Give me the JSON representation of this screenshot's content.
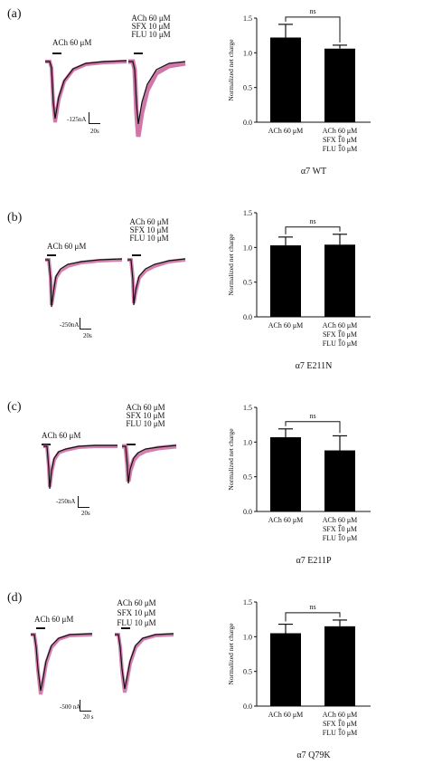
{
  "panels": [
    {
      "label": "(a)",
      "ach_label": "ACh 60 μM",
      "combo_lines": [
        "ACh 60 μM",
        "+",
        "SFX 10 μM",
        "+",
        "FLU 10 μM"
      ],
      "scale_current": "-125nA",
      "scale_time": "20s"
    },
    {
      "label": "(b)",
      "ach_label": "ACh 60 μM",
      "combo_lines": [
        "ACh 60 μM",
        "+",
        "SFX 10 μM",
        "+",
        "FLU 10 μM"
      ],
      "scale_current": "-250nA",
      "scale_time": "20s"
    },
    {
      "label": "(c)",
      "ach_label": "ACh 60 μM",
      "combo_lines": [
        "ACh 60 μM",
        "+",
        "SFX 10 μM",
        "+",
        "FLU 10 μM"
      ],
      "scale_current": "-250nA",
      "scale_time": "20s"
    },
    {
      "label": "(d)",
      "ach_label": "ACh 60 μM",
      "combo_lines": [
        "ACh 60 μM",
        "+",
        "SFX 10 μM",
        "+",
        "FLU 10 μM"
      ],
      "scale_current": "-500 nA",
      "scale_time": "20 s"
    }
  ],
  "chart_data": [
    {
      "type": "bar",
      "title": "α7 WT",
      "ylabel": "Normalized net charge",
      "ylim": [
        0.0,
        1.5
      ],
      "yticks": [
        "0.0",
        "0.5",
        "1.0",
        "1.5"
      ],
      "categories": [
        "ACh 60 μM",
        "ACh 60 μM + SFX 10 μM + FLU 10 μM"
      ],
      "category_lines": [
        [
          "ACh 60 μM"
        ],
        [
          "ACh 60 μM",
          "+",
          "SFX 10 μM",
          "+",
          "FLU 10 μM"
        ]
      ],
      "values": [
        1.22,
        1.06
      ],
      "errors": [
        0.19,
        0.05
      ],
      "significance": "ns"
    },
    {
      "type": "bar",
      "title": "α7 E211N",
      "ylabel": "Normalized net charge",
      "ylim": [
        0.0,
        1.5
      ],
      "yticks": [
        "0.0",
        "0.5",
        "1.0",
        "1.5"
      ],
      "categories": [
        "ACh 60 μM",
        "ACh 60 μM + SFX 10 μM + FLU 10 μM"
      ],
      "category_lines": [
        [
          "ACh 60 μM"
        ],
        [
          "ACh 60 μM",
          "+",
          "SFX 10 μM",
          "+",
          "FLU 10 μM"
        ]
      ],
      "values": [
        1.03,
        1.04
      ],
      "errors": [
        0.12,
        0.15
      ],
      "significance": "ns"
    },
    {
      "type": "bar",
      "title": "α7 E211P",
      "ylabel": "Normalized net charge",
      "ylim": [
        0.0,
        1.5
      ],
      "yticks": [
        "0.0",
        "0.5",
        "1.0",
        "1.5"
      ],
      "categories": [
        "ACh 60 μM",
        "ACh 60 μM + SFX 10 μM + FLU 10 μM"
      ],
      "category_lines": [
        [
          "ACh 60 μM"
        ],
        [
          "ACh 60 μM",
          "+",
          "SFX 10 μM",
          "+",
          "FLU 10 μM"
        ]
      ],
      "values": [
        1.07,
        0.88
      ],
      "errors": [
        0.12,
        0.21
      ],
      "significance": "ns"
    },
    {
      "type": "bar",
      "title": "α7 Q79K",
      "ylabel": "Normalized net charge",
      "ylim": [
        0.0,
        1.5
      ],
      "yticks": [
        "0.0",
        "0.5",
        "1.0",
        "1.5"
      ],
      "categories": [
        "ACh 60 μM",
        "ACh 60 μM + SFX 10 μM + FLU 10 μM"
      ],
      "category_lines": [
        [
          "ACh 60 μM"
        ],
        [
          "ACh 60 μM",
          "+",
          "SFX 10 μM",
          "+",
          "FLU 10 μM"
        ]
      ],
      "values": [
        1.05,
        1.15
      ],
      "errors": [
        0.13,
        0.09
      ],
      "significance": "ns"
    }
  ]
}
